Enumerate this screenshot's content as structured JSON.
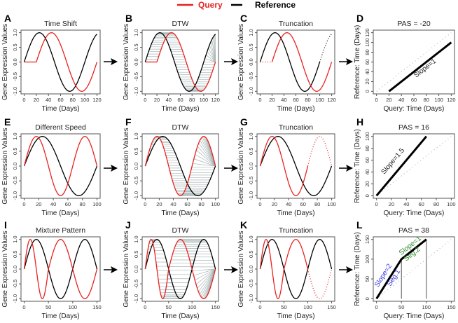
{
  "legend": {
    "query": "Query",
    "reference": "Reference",
    "query_color": "#e8221f",
    "reference_color": "#000000"
  },
  "colors": {
    "dtw_line": "#a9b6b6",
    "diagonal": "#b8b8b8",
    "guide": "#555555"
  },
  "chart_data": [
    {
      "letter": "A",
      "title": "Time Shift",
      "type": "line",
      "xlabel": "Time  (Days)",
      "ylabel": "Gene Expression Values",
      "xlim": [
        0,
        120
      ],
      "ylim": [
        -1,
        1
      ],
      "xticks": [
        0,
        20,
        40,
        60,
        80,
        100,
        120
      ],
      "yticks": [
        -1,
        -0.5,
        0,
        0.5,
        1
      ],
      "series": [
        {
          "name": "Reference",
          "pieces": [
            {
              "from": 0,
              "to": 120,
              "period": 100,
              "shift": 0,
              "style": "solid"
            }
          ]
        },
        {
          "name": "Query",
          "pieces": [
            {
              "from": 0,
              "to": 20,
              "period": 0,
              "shift": 0,
              "style": "solid"
            },
            {
              "from": 20,
              "to": 120,
              "period": 100,
              "shift": 20,
              "style": "solid"
            }
          ]
        }
      ]
    },
    {
      "letter": "B",
      "title": "DTW",
      "type": "line",
      "xlabel": "Time  (Days)",
      "ylabel": "Gene Expression Values",
      "xlim": [
        0,
        120
      ],
      "ylim": [
        -1,
        1
      ],
      "xticks": [
        0,
        20,
        40,
        60,
        80,
        100,
        120
      ],
      "yticks": [
        -1,
        -0.5,
        0,
        0.5,
        1
      ],
      "warp": [
        [
          0,
          0
        ],
        [
          20,
          0
        ],
        [
          120,
          100
        ],
        [
          120,
          120
        ]
      ],
      "series": [
        {
          "name": "Reference",
          "pieces": [
            {
              "from": 0,
              "to": 120,
              "period": 100,
              "shift": 0,
              "style": "solid"
            }
          ]
        },
        {
          "name": "Query",
          "pieces": [
            {
              "from": 0,
              "to": 20,
              "period": 0,
              "shift": 0,
              "style": "solid"
            },
            {
              "from": 20,
              "to": 120,
              "period": 100,
              "shift": 20,
              "style": "solid"
            }
          ]
        }
      ]
    },
    {
      "letter": "C",
      "title": "Truncation",
      "type": "line",
      "xlabel": "Time  (Days)",
      "ylabel": "Gene Expression Values",
      "xlim": [
        0,
        120
      ],
      "ylim": [
        -1,
        1
      ],
      "xticks": [
        0,
        20,
        40,
        60,
        80,
        100,
        120
      ],
      "yticks": [
        -1,
        -0.5,
        0,
        0.5,
        1
      ],
      "series": [
        {
          "name": "Reference",
          "pieces": [
            {
              "from": 0,
              "to": 100,
              "period": 100,
              "shift": 0,
              "style": "solid"
            },
            {
              "from": 100,
              "to": 120,
              "period": 100,
              "shift": 0,
              "style": "dotted"
            }
          ]
        },
        {
          "name": "Query",
          "pieces": [
            {
              "from": 0,
              "to": 20,
              "period": 0,
              "shift": 0,
              "style": "dotted"
            },
            {
              "from": 20,
              "to": 120,
              "period": 100,
              "shift": 20,
              "style": "solid"
            }
          ]
        }
      ]
    },
    {
      "letter": "D",
      "title": "PAS = -20",
      "type": "pas",
      "xlabel": "Query: Time (Days)",
      "ylabel": "Reference: Time (Days)",
      "xlim": [
        0,
        120
      ],
      "ylim": [
        0,
        120
      ],
      "xticks": [
        0,
        20,
        40,
        60,
        80,
        100,
        120
      ],
      "yticks": [
        0,
        20,
        40,
        60,
        80,
        100,
        120
      ],
      "alignment": [
        [
          20,
          0
        ],
        [
          120,
          100
        ]
      ],
      "diagonal": [
        [
          0,
          0
        ],
        [
          120,
          120
        ]
      ],
      "guides": [],
      "annotations": [
        {
          "text": "Slope=1",
          "x": 80,
          "y": 44,
          "slope": 1,
          "color": "#222222"
        }
      ]
    },
    {
      "letter": "E",
      "title": "Different Speed",
      "type": "line",
      "xlabel": "Time  (Days)",
      "ylabel": "Gene Expression Values",
      "xlim": [
        0,
        100
      ],
      "ylim": [
        -1,
        1
      ],
      "xticks": [
        0,
        20,
        40,
        60,
        80,
        100
      ],
      "yticks": [
        -1,
        -0.5,
        0,
        0.5,
        1
      ],
      "series": [
        {
          "name": "Reference",
          "pieces": [
            {
              "from": 0,
              "to": 100,
              "period": 100,
              "shift": 0,
              "style": "solid"
            }
          ]
        },
        {
          "name": "Query",
          "pieces": [
            {
              "from": 0,
              "to": 100,
              "period": 66.7,
              "shift": 0,
              "style": "solid"
            }
          ]
        }
      ]
    },
    {
      "letter": "F",
      "title": "DTW",
      "type": "line",
      "xlabel": "Time  (Days)",
      "ylabel": "Gene Expression Values",
      "xlim": [
        0,
        100
      ],
      "ylim": [
        -1,
        1
      ],
      "xticks": [
        0,
        20,
        40,
        60,
        80,
        100
      ],
      "yticks": [
        -1,
        -0.5,
        0,
        0.5,
        1
      ],
      "warp": [
        [
          0,
          0
        ],
        [
          66.7,
          100
        ],
        [
          100,
          100
        ]
      ],
      "series": [
        {
          "name": "Reference",
          "pieces": [
            {
              "from": 0,
              "to": 100,
              "period": 100,
              "shift": 0,
              "style": "solid"
            }
          ]
        },
        {
          "name": "Query",
          "pieces": [
            {
              "from": 0,
              "to": 100,
              "period": 66.7,
              "shift": 0,
              "style": "solid"
            }
          ]
        }
      ]
    },
    {
      "letter": "G",
      "title": "Truncation",
      "type": "line",
      "xlabel": "Time  (Days)",
      "ylabel": "Gene Expression Values",
      "xlim": [
        0,
        100
      ],
      "ylim": [
        -1,
        1
      ],
      "xticks": [
        0,
        20,
        40,
        60,
        80,
        100
      ],
      "yticks": [
        -1,
        -0.5,
        0,
        0.5,
        1
      ],
      "series": [
        {
          "name": "Reference",
          "pieces": [
            {
              "from": 0,
              "to": 100,
              "period": 100,
              "shift": 0,
              "style": "solid"
            }
          ]
        },
        {
          "name": "Query",
          "pieces": [
            {
              "from": 0,
              "to": 66.7,
              "period": 66.7,
              "shift": 0,
              "style": "solid"
            },
            {
              "from": 66.7,
              "to": 100,
              "period": 66.7,
              "shift": 0,
              "style": "dotted"
            }
          ]
        }
      ]
    },
    {
      "letter": "H",
      "title": "PAS = 16",
      "type": "pas",
      "xlabel": "Query: Time (Days)",
      "ylabel": "Reference: Time (Days)",
      "xlim": [
        0,
        100
      ],
      "ylim": [
        0,
        100
      ],
      "xticks": [
        0,
        20,
        40,
        60,
        80,
        100
      ],
      "yticks": [
        0,
        20,
        40,
        60,
        80,
        100
      ],
      "alignment": [
        [
          0,
          0
        ],
        [
          66.7,
          100
        ]
      ],
      "diagonal": [
        [
          0,
          0
        ],
        [
          100,
          100
        ]
      ],
      "guides": [],
      "annotations": [
        {
          "text": "Slope=1.5",
          "x": 24,
          "y": 56,
          "slope": 1.5,
          "color": "#222222"
        }
      ]
    },
    {
      "letter": "I",
      "title": "Mixture Pattern",
      "type": "line",
      "xlabel": "Time  (Days)",
      "ylabel": "Gene Expression Values",
      "xlim": [
        0,
        150
      ],
      "ylim": [
        -1,
        1
      ],
      "xticks": [
        0,
        50,
        100,
        150
      ],
      "yticks": [
        -1,
        -0.5,
        0,
        0.5,
        1
      ],
      "series": [
        {
          "name": "Reference",
          "pieces": [
            {
              "from": 0,
              "to": 150,
              "period": 100,
              "shift": 0,
              "style": "solid"
            }
          ]
        },
        {
          "name": "Query",
          "pieces": [
            {
              "from": 0,
              "to": 50,
              "period": 50,
              "shift": 0,
              "style": "solid"
            },
            {
              "from": 50,
              "to": 150,
              "period": 100,
              "shift": 50,
              "style": "solid"
            }
          ]
        }
      ]
    },
    {
      "letter": "J",
      "title": "DTW",
      "type": "line",
      "xlabel": "Time  (Days)",
      "ylabel": "Gene Expression Values",
      "xlim": [
        0,
        150
      ],
      "ylim": [
        -1,
        1
      ],
      "xticks": [
        0,
        50,
        100,
        150
      ],
      "yticks": [
        -1,
        -0.5,
        0,
        0.5,
        1
      ],
      "warp": [
        [
          0,
          0
        ],
        [
          50,
          100
        ],
        [
          100,
          150
        ],
        [
          150,
          150
        ]
      ],
      "series": [
        {
          "name": "Reference",
          "pieces": [
            {
              "from": 0,
              "to": 150,
              "period": 100,
              "shift": 0,
              "style": "solid"
            }
          ]
        },
        {
          "name": "Query",
          "pieces": [
            {
              "from": 0,
              "to": 50,
              "period": 50,
              "shift": 0,
              "style": "solid"
            },
            {
              "from": 50,
              "to": 150,
              "period": 100,
              "shift": 50,
              "style": "solid"
            }
          ]
        }
      ]
    },
    {
      "letter": "K",
      "title": "Truncation",
      "type": "line",
      "xlabel": "Time  (Days)",
      "ylabel": "Gene Expression Values",
      "xlim": [
        0,
        150
      ],
      "ylim": [
        -1,
        1
      ],
      "xticks": [
        0,
        50,
        100,
        150
      ],
      "yticks": [
        -1,
        -0.5,
        0,
        0.5,
        1
      ],
      "series": [
        {
          "name": "Reference",
          "pieces": [
            {
              "from": 0,
              "to": 150,
              "period": 100,
              "shift": 0,
              "style": "solid"
            }
          ]
        },
        {
          "name": "Query",
          "pieces": [
            {
              "from": 0,
              "to": 50,
              "period": 50,
              "shift": 0,
              "style": "solid"
            },
            {
              "from": 50,
              "to": 100,
              "period": 100,
              "shift": 50,
              "style": "solid"
            },
            {
              "from": 100,
              "to": 150,
              "period": 100,
              "shift": 50,
              "style": "dotted"
            }
          ]
        }
      ]
    },
    {
      "letter": "L",
      "title": "PAS = 38",
      "type": "pas",
      "xlabel": "Query: Time (Days)",
      "ylabel": "Reference: Time (Days)",
      "xlim": [
        0,
        150
      ],
      "ylim": [
        0,
        150
      ],
      "xticks": [
        0,
        50,
        100,
        150
      ],
      "yticks": [
        0,
        50,
        100,
        150
      ],
      "alignment": [
        [
          0,
          0
        ],
        [
          50,
          100
        ],
        [
          100,
          150
        ]
      ],
      "diagonal": [
        [
          0,
          0
        ],
        [
          150,
          150
        ]
      ],
      "guides": [
        [
          50,
          0,
          50,
          100
        ],
        [
          100,
          0,
          100,
          150
        ]
      ],
      "annotations": [
        {
          "text": "Slope=2",
          "x": 17,
          "y": 56,
          "slope": 2,
          "color": "#3a3adf"
        },
        {
          "text": "Seg.1",
          "x": 38,
          "y": 50,
          "slope": 2,
          "color": "#3a3adf"
        },
        {
          "text": "Slope=1",
          "x": 70,
          "y": 130,
          "slope": 1,
          "color": "#2f8a2f"
        },
        {
          "text": "Seg.2",
          "x": 74,
          "y": 109,
          "slope": 1,
          "color": "#2f8a2f"
        }
      ]
    }
  ]
}
